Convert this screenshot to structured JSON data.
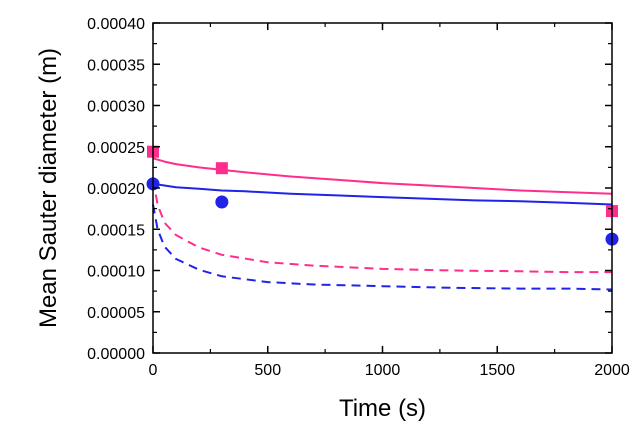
{
  "chart_data": {
    "type": "line",
    "title": "",
    "xlabel": "Time (s)",
    "ylabel": "Mean Sauter diameter (m)",
    "xlim": [
      0,
      2000
    ],
    "ylim": [
      0,
      0.0004
    ],
    "grid": false,
    "x_ticks": [
      "0",
      "500",
      "1000",
      "1500",
      "2000"
    ],
    "y_ticks": [
      "0.00000",
      "0.00005",
      "0.00010",
      "0.00015",
      "0.00020",
      "0.00025",
      "0.00030",
      "0.00035",
      "0.00040"
    ],
    "series": [
      {
        "color": "#ff2d8c",
        "style": "solid",
        "x": [
          0,
          50,
          100,
          200,
          300,
          400,
          600,
          800,
          1000,
          1200,
          1400,
          1600,
          1800,
          2000
        ],
        "y": [
          0.000236,
          0.000232,
          0.000229,
          0.000225,
          0.000222,
          0.000219,
          0.000214,
          0.00021,
          0.000206,
          0.000203,
          0.0002,
          0.000197,
          0.000195,
          0.000193
        ]
      },
      {
        "color": "#1f24e6",
        "style": "solid",
        "x": [
          0,
          50,
          100,
          200,
          300,
          400,
          600,
          800,
          1000,
          1200,
          1400,
          1600,
          1800,
          2000
        ],
        "y": [
          0.000205,
          0.000203,
          0.000201,
          0.000199,
          0.000197,
          0.000196,
          0.000193,
          0.000191,
          0.000189,
          0.000187,
          0.000185,
          0.000184,
          0.000182,
          0.00018
        ]
      },
      {
        "color": "#ff2d8c",
        "style": "dashed",
        "x": [
          0,
          20,
          50,
          100,
          200,
          300,
          500,
          700,
          1000,
          1300,
          1600,
          1800,
          2000
        ],
        "y": [
          0.00021,
          0.00018,
          0.000158,
          0.000143,
          0.000128,
          0.000119,
          0.00011,
          0.000106,
          0.000102,
          0.0001,
          9.9e-05,
          9.8e-05,
          9.8e-05
        ]
      },
      {
        "color": "#1f24e6",
        "style": "dashed",
        "x": [
          0,
          20,
          50,
          100,
          200,
          300,
          500,
          700,
          1000,
          1300,
          1600,
          1800,
          2000
        ],
        "y": [
          0.00018,
          0.00015,
          0.000129,
          0.000114,
          0.000101,
          9.3e-05,
          8.6e-05,
          8.3e-05,
          8.1e-05,
          7.9e-05,
          7.8e-05,
          7.8e-05,
          7.7e-05
        ]
      },
      {
        "color": "#ff2d8c",
        "style": "marker-square",
        "x": [
          0,
          300,
          2000
        ],
        "y": [
          0.000244,
          0.000224,
          0.000172
        ]
      },
      {
        "color": "#1f24e6",
        "style": "marker-circle",
        "x": [
          0,
          300,
          2000
        ],
        "y": [
          0.000205,
          0.000183,
          0.000138
        ]
      }
    ]
  }
}
